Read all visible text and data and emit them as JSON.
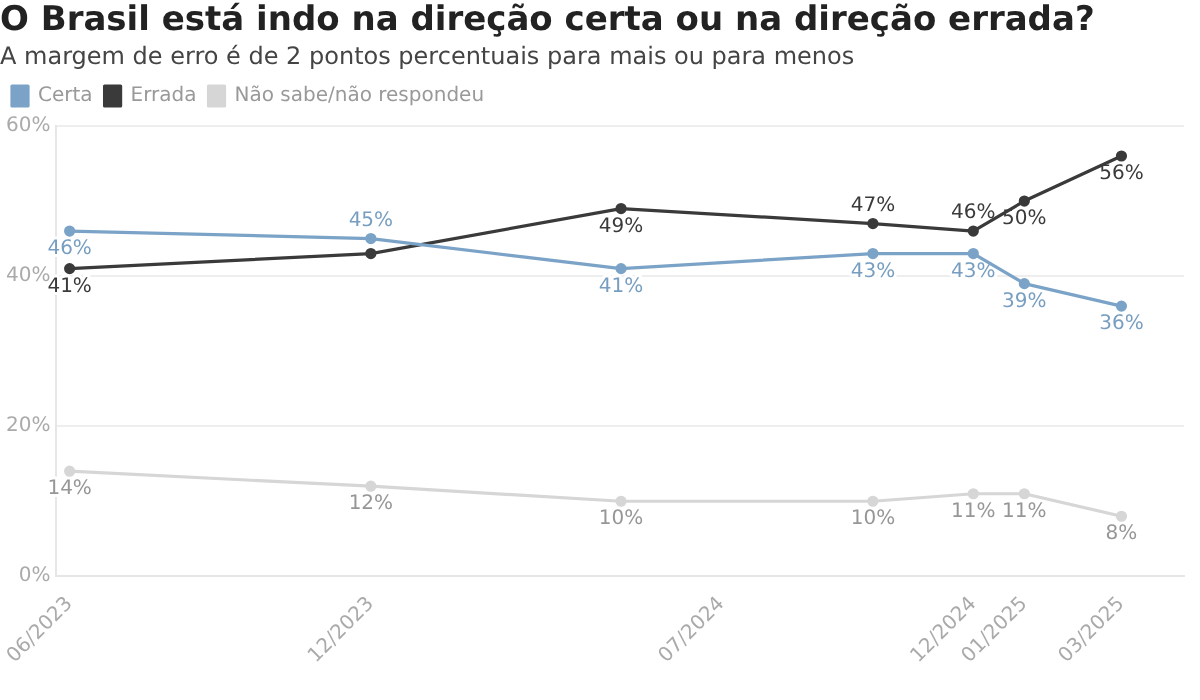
{
  "chart_data": {
    "type": "line",
    "title": "O Brasil está indo na direção certa ou na direção errada?",
    "subtitle": "A margem de erro é de 2 pontos percentuais para mais ou para menos",
    "x": [
      "2023-06",
      "2023-12",
      "2024-05",
      "2024-10",
      "2024-12",
      "2025-01",
      "2025-03"
    ],
    "series": [
      {
        "name": "Certa",
        "color": "#7ba3c7",
        "values": [
          46,
          45,
          41,
          43,
          43,
          39,
          36
        ],
        "value_labels": [
          "46%",
          "45%",
          "41%",
          "43%",
          "43%",
          "39%",
          "36%"
        ]
      },
      {
        "name": "Errada",
        "color": "#3a3a3a",
        "values": [
          41,
          43,
          49,
          47,
          46,
          50,
          56
        ],
        "value_labels": [
          "41%",
          null,
          "49%",
          "47%",
          "46%",
          "50%",
          "56%"
        ]
      },
      {
        "name": "Não sabe/não respondeu",
        "color": "#d6d6d6",
        "values": [
          14,
          12,
          10,
          10,
          11,
          11,
          8
        ],
        "value_labels": [
          "14%",
          "12%",
          "10%",
          "10%",
          "11%",
          "11%",
          "8%"
        ]
      }
    ],
    "xlim": [
      "2023-05-24",
      "2025-04-08"
    ],
    "xticks": [
      {
        "value": "2023-06",
        "label": "06/2023"
      },
      {
        "value": "2023-12",
        "label": "12/2023"
      },
      {
        "value": "2024-07",
        "label": "07/2024"
      },
      {
        "value": "2024-12",
        "label": "12/2024"
      },
      {
        "value": "2025-01",
        "label": "01/2025"
      },
      {
        "value": "2025-03",
        "label": "03/2025"
      }
    ],
    "ylim": [
      0,
      60
    ],
    "yticks": [
      {
        "value": 0,
        "label": "0%"
      },
      {
        "value": 20,
        "label": "20%"
      },
      {
        "value": 40,
        "label": "40%"
      },
      {
        "value": 60,
        "label": "60%"
      }
    ],
    "grid": "y",
    "legend": "top left",
    "marker": "circle",
    "line_style": "solid"
  }
}
